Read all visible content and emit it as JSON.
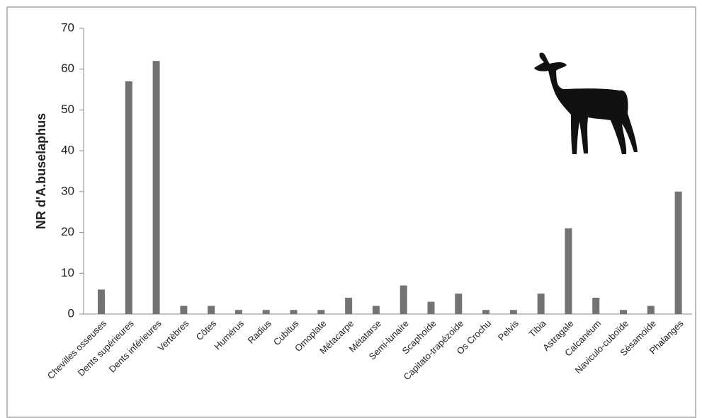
{
  "chart_data": {
    "type": "bar",
    "y_label": "NR d'A.buselaphus",
    "categories": [
      "Chevilles osseuses",
      "Dents supérieures",
      "Dents inférieures",
      "Vertèbres",
      "Côtes",
      "Humérus",
      "Radius",
      "Cubitus",
      "Omoplate",
      "Métacarpe",
      "Métatarse",
      "Semi-lunaire",
      "Scaphoide",
      "Capitato-trapézoide",
      "Os Crochu",
      "Pelvis",
      "Tibia",
      "Astragale",
      "Calcanéum",
      "Naviculo-cuboïde",
      "Sésamoide",
      "Phalanges"
    ],
    "values": [
      6,
      57,
      62,
      2,
      2,
      1,
      1,
      1,
      1,
      4,
      2,
      7,
      3,
      5,
      1,
      1,
      5,
      21,
      4,
      1,
      2,
      30
    ],
    "color": "#737373",
    "ylim": [
      0,
      70
    ],
    "yticks": [
      0,
      10,
      20,
      30,
      40,
      50,
      60,
      70
    ],
    "grid": false
  }
}
